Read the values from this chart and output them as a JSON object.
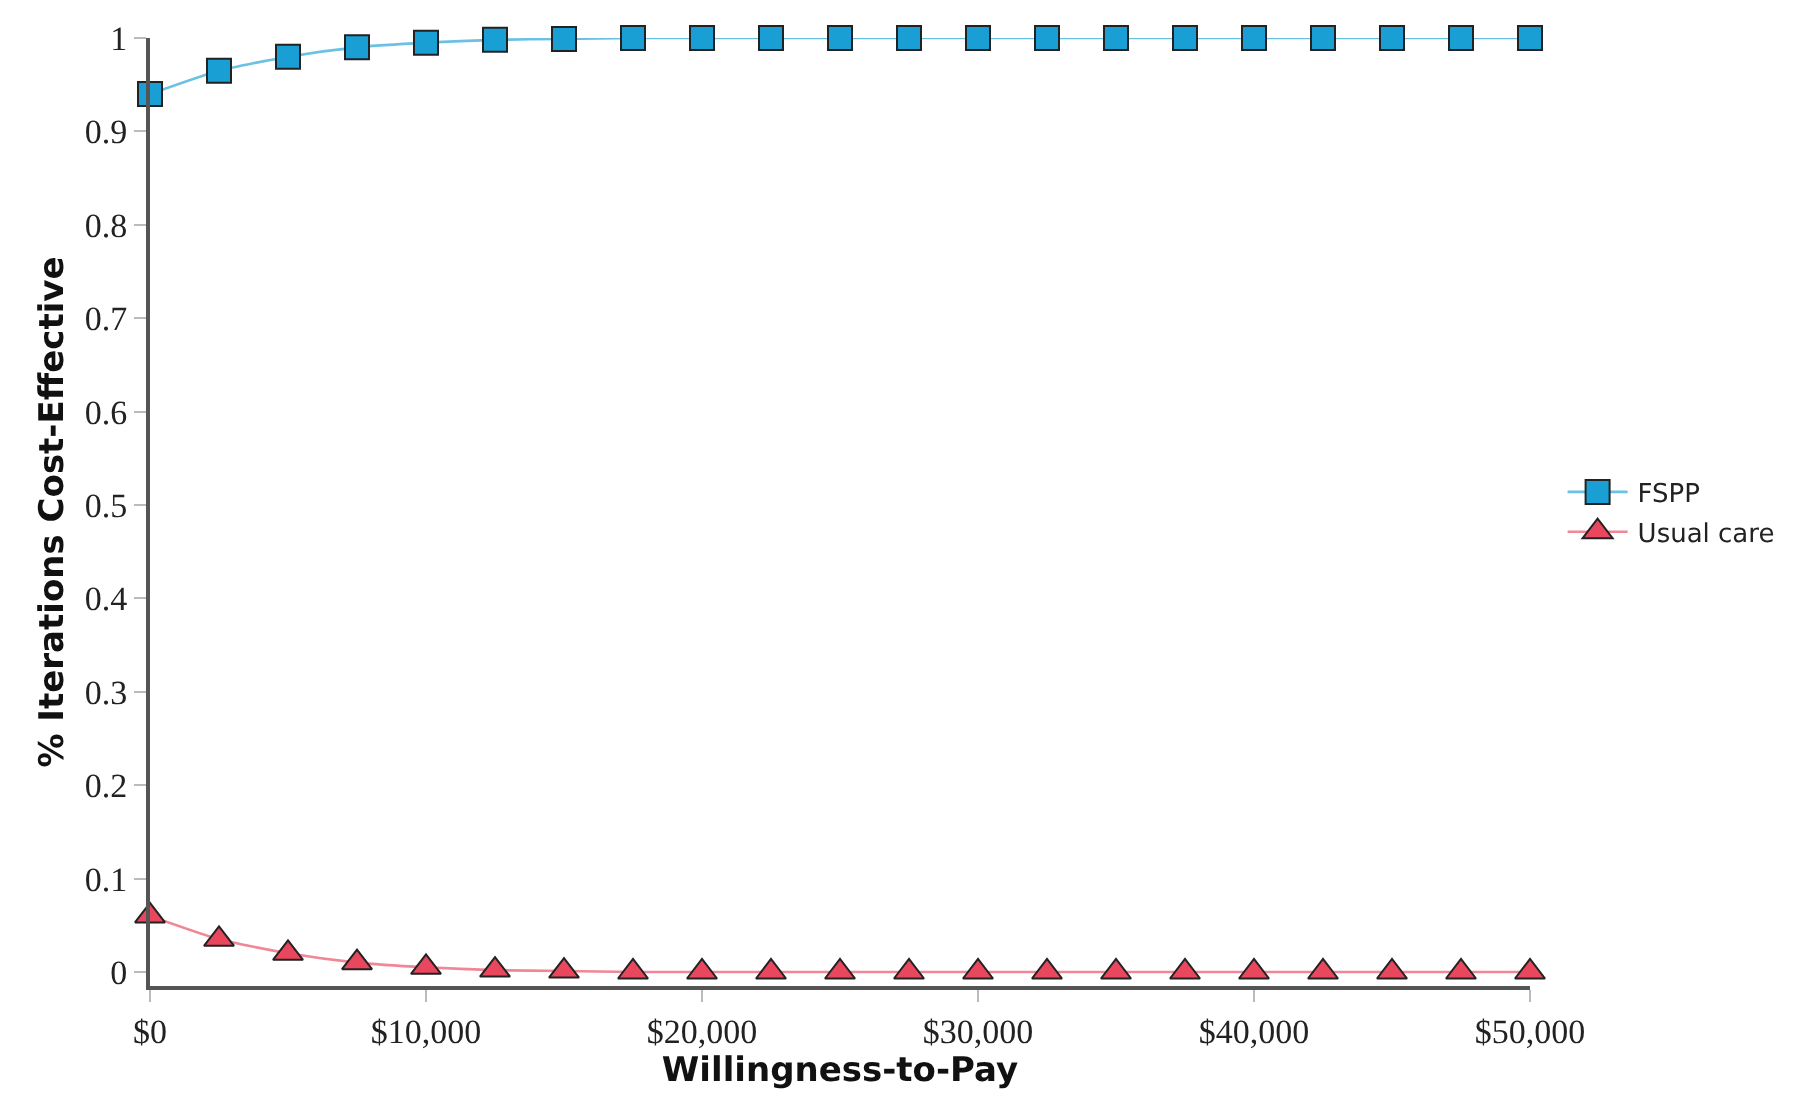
{
  "chart_data": {
    "type": "line",
    "xlabel": "Willingness-to-Pay",
    "ylabel": "% Iterations Cost-Effective",
    "x": [
      0,
      2500,
      5000,
      7500,
      10000,
      12500,
      15000,
      17500,
      20000,
      22500,
      25000,
      27500,
      30000,
      32500,
      35000,
      37500,
      40000,
      42500,
      45000,
      47500,
      50000
    ],
    "series": [
      {
        "name": "FSPP",
        "color": "#1a9fd4",
        "marker": "square",
        "values": [
          0.94,
          0.965,
          0.98,
          0.99,
          0.995,
          0.998,
          0.999,
          1,
          1,
          1,
          1,
          1,
          1,
          1,
          1,
          1,
          1,
          1,
          1,
          1,
          1
        ]
      },
      {
        "name": "Usual care",
        "color": "#e8475e",
        "marker": "triangle",
        "values": [
          0.06,
          0.035,
          0.02,
          0.01,
          0.005,
          0.002,
          0.001,
          0,
          0,
          0,
          0,
          0,
          0,
          0,
          0,
          0,
          0,
          0,
          0,
          0,
          0
        ]
      }
    ],
    "xlim": [
      0,
      50000
    ],
    "xticks": [
      {
        "value": 0,
        "label": "$0"
      },
      {
        "value": 10000,
        "label": "$10,000"
      },
      {
        "value": 20000,
        "label": "$20,000"
      },
      {
        "value": 30000,
        "label": "$30,000"
      },
      {
        "value": 40000,
        "label": "$40,000"
      },
      {
        "value": 50000,
        "label": "$50,000"
      }
    ],
    "ylim": [
      -0.015,
      1
    ],
    "yticks": [
      0,
      0.1,
      0.2,
      0.3,
      0.4,
      0.5,
      0.6,
      0.7,
      0.8,
      0.9,
      1
    ],
    "grid": false,
    "legend": "right",
    "line_style": "solid"
  }
}
